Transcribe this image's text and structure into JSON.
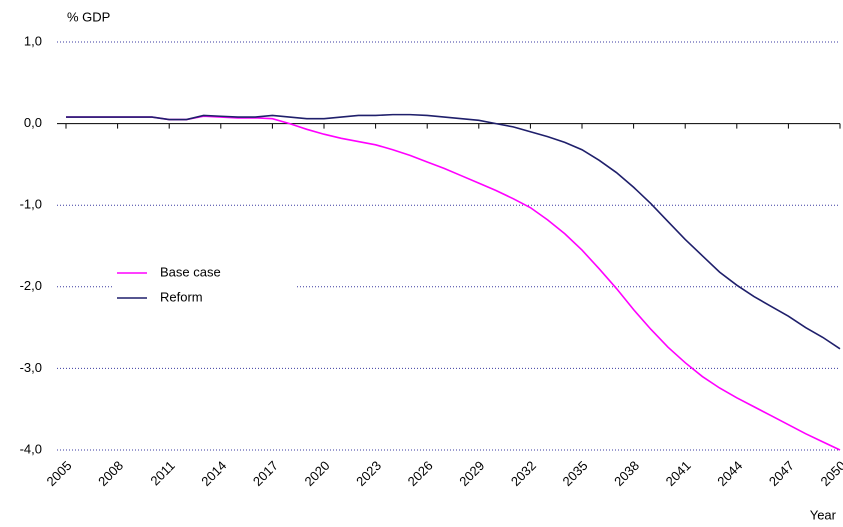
{
  "chart_data": {
    "type": "line",
    "y_label": "% GDP",
    "x_label": "Year",
    "x": [
      2005,
      2006,
      2007,
      2008,
      2009,
      2010,
      2011,
      2012,
      2013,
      2014,
      2015,
      2016,
      2017,
      2018,
      2019,
      2020,
      2021,
      2022,
      2023,
      2024,
      2025,
      2026,
      2027,
      2028,
      2029,
      2030,
      2031,
      2032,
      2033,
      2034,
      2035,
      2036,
      2037,
      2038,
      2039,
      2040,
      2041,
      2042,
      2043,
      2044,
      2045,
      2046,
      2047,
      2048,
      2049,
      2050
    ],
    "series": [
      {
        "name": "Base case",
        "color": "#ff00ff",
        "values": [
          0.08,
          0.08,
          0.08,
          0.08,
          0.08,
          0.08,
          0.05,
          0.05,
          0.09,
          0.08,
          0.07,
          0.07,
          0.06,
          0.0,
          -0.07,
          -0.13,
          -0.18,
          -0.22,
          -0.26,
          -0.32,
          -0.39,
          -0.47,
          -0.55,
          -0.64,
          -0.73,
          -0.82,
          -0.92,
          -1.03,
          -1.18,
          -1.35,
          -1.55,
          -1.78,
          -2.02,
          -2.28,
          -2.52,
          -2.74,
          -2.93,
          -3.1,
          -3.24,
          -3.36,
          -3.47,
          -3.58,
          -3.69,
          -3.8,
          -3.9,
          -4.0
        ]
      },
      {
        "name": "Reform",
        "color": "#1f1f6b",
        "values": [
          0.08,
          0.08,
          0.08,
          0.08,
          0.08,
          0.08,
          0.05,
          0.05,
          0.1,
          0.09,
          0.08,
          0.08,
          0.1,
          0.08,
          0.06,
          0.06,
          0.08,
          0.1,
          0.1,
          0.11,
          0.11,
          0.1,
          0.08,
          0.06,
          0.04,
          0.0,
          -0.04,
          -0.1,
          -0.16,
          -0.23,
          -0.32,
          -0.45,
          -0.6,
          -0.78,
          -0.98,
          -1.2,
          -1.42,
          -1.62,
          -1.82,
          -1.98,
          -2.12,
          -2.24,
          -2.36,
          -2.5,
          -2.62,
          -2.76
        ]
      }
    ],
    "xlim": [
      2005,
      2050
    ],
    "xticks": [
      2005,
      2008,
      2011,
      2014,
      2017,
      2020,
      2023,
      2026,
      2029,
      2032,
      2035,
      2038,
      2041,
      2044,
      2047,
      2050
    ],
    "ylim": [
      -4,
      1
    ],
    "yticks": [
      {
        "value": -4,
        "label": "-4,0"
      },
      {
        "value": -3,
        "label": "-3,0"
      },
      {
        "value": -2,
        "label": "-2,0"
      },
      {
        "value": -1,
        "label": "-1,0"
      },
      {
        "value": 0,
        "label": "0,0"
      },
      {
        "value": 1,
        "label": "1,0"
      }
    ],
    "grid": true,
    "legend": "left"
  }
}
